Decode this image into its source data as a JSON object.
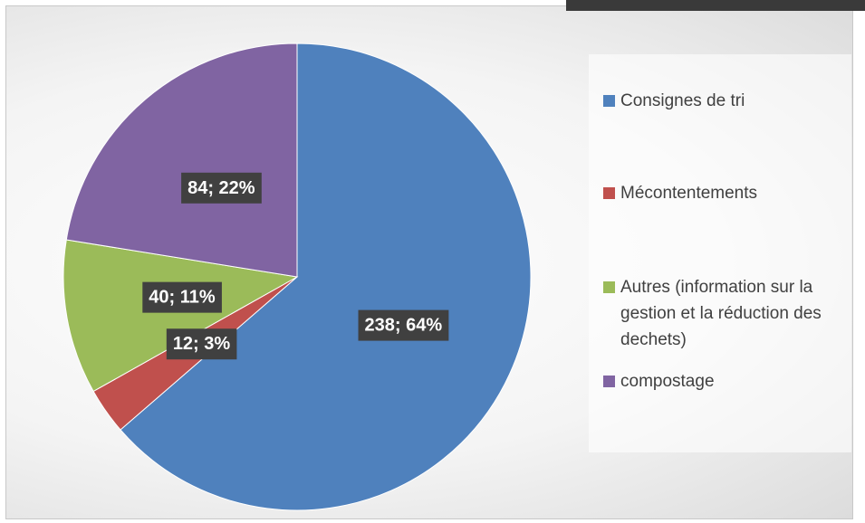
{
  "chart_data": {
    "type": "pie",
    "categories": [
      "Consignes de tri",
      "Mécontentements",
      "Autres (information sur la gestion et la réduction des dechets)",
      "compostage"
    ],
    "values": [
      238,
      12,
      40,
      84
    ],
    "value_labels": [
      "238; 64%",
      "12; 3%",
      "40; 11%",
      "84; 22%"
    ],
    "colors": [
      "#4f81bd",
      "#c0504d",
      "#9bbb59",
      "#8064a2"
    ],
    "legend": "right"
  }
}
